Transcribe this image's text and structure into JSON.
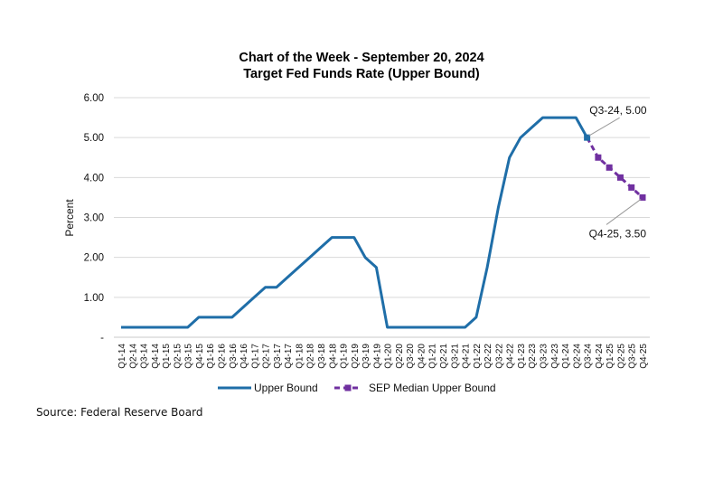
{
  "chart_data": {
    "type": "line",
    "title": "Chart of the Week - September 20, 2024",
    "subtitle": "Target Fed Funds Rate (Upper Bound)",
    "xlabel": "",
    "ylabel": "Percent",
    "ylim": [
      0,
      6
    ],
    "yticks": [
      0,
      1,
      2,
      3,
      4,
      5,
      6
    ],
    "ytick_labels": [
      "-",
      "1.00",
      "2.00",
      "3.00",
      "4.00",
      "5.00",
      "6.00"
    ],
    "grid": "horizontal",
    "legend_position": "bottom",
    "categories": [
      "Q1-14",
      "Q2-14",
      "Q3-14",
      "Q4-14",
      "Q1-15",
      "Q2-15",
      "Q3-15",
      "Q4-15",
      "Q1-16",
      "Q2-16",
      "Q3-16",
      "Q4-16",
      "Q1-17",
      "Q2-17",
      "Q3-17",
      "Q4-17",
      "Q1-18",
      "Q2-18",
      "Q3-18",
      "Q4-18",
      "Q1-19",
      "Q2-19",
      "Q3-19",
      "Q4-19",
      "Q1-20",
      "Q2-20",
      "Q3-20",
      "Q4-20",
      "Q1-21",
      "Q2-21",
      "Q3-21",
      "Q4-21",
      "Q1-22",
      "Q2-22",
      "Q3-22",
      "Q4-22",
      "Q1-23",
      "Q2-23",
      "Q3-23",
      "Q4-23",
      "Q1-24",
      "Q2-24",
      "Q3-24",
      "Q4-24",
      "Q1-25",
      "Q2-25",
      "Q3-25",
      "Q4-25"
    ],
    "series": [
      {
        "name": "Upper Bound",
        "color": "#1f6ea8",
        "style": "solid",
        "values": [
          0.25,
          0.25,
          0.25,
          0.25,
          0.25,
          0.25,
          0.25,
          0.5,
          0.5,
          0.5,
          0.5,
          0.75,
          1.0,
          1.25,
          1.25,
          1.5,
          1.75,
          2.0,
          2.25,
          2.5,
          2.5,
          2.5,
          2.0,
          1.75,
          0.25,
          0.25,
          0.25,
          0.25,
          0.25,
          0.25,
          0.25,
          0.25,
          0.5,
          1.75,
          3.25,
          4.5,
          5.0,
          5.25,
          5.5,
          5.5,
          5.5,
          5.5,
          5.0,
          null,
          null,
          null,
          null,
          null
        ]
      },
      {
        "name": "SEP Median Upper Bound",
        "color": "#7030a0",
        "style": "dashed-square-markers",
        "values": [
          null,
          null,
          null,
          null,
          null,
          null,
          null,
          null,
          null,
          null,
          null,
          null,
          null,
          null,
          null,
          null,
          null,
          null,
          null,
          null,
          null,
          null,
          null,
          null,
          null,
          null,
          null,
          null,
          null,
          null,
          null,
          null,
          null,
          null,
          null,
          null,
          null,
          null,
          null,
          null,
          null,
          null,
          5.0,
          4.5,
          4.25,
          4.0,
          3.75,
          3.5
        ]
      }
    ],
    "annotations": [
      {
        "category": "Q3-24",
        "value": 5.0,
        "text": "Q3-24,  5.00"
      },
      {
        "category": "Q4-25",
        "value": 3.5,
        "text": "Q4-25,  3.50"
      }
    ]
  },
  "source": "Source: Federal Reserve Board"
}
